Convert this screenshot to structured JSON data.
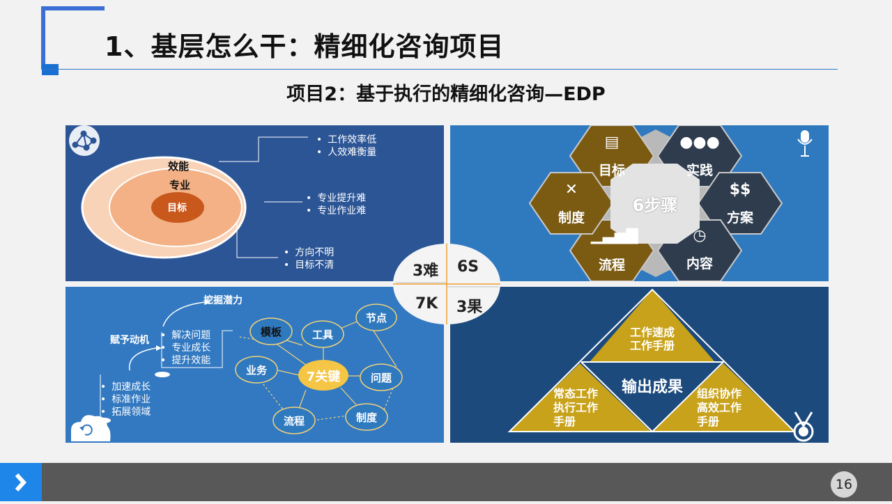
{
  "header": {
    "title": "1、基层怎么干：精细化咨询项目",
    "subtitle": "项目2：基于执行的精细化咨询—EDP"
  },
  "panel_efficiency": {
    "outer_label": "效能",
    "middle_label": "专业",
    "inner_label": "目标",
    "callout_1": [
      "工作效率低",
      "人效难衡量"
    ],
    "callout_2": [
      "专业提升难",
      "专业作业难"
    ],
    "callout_3": [
      "方向不明",
      "目标不清"
    ]
  },
  "panel_steps": {
    "center": "6步骤",
    "steps": [
      "目标",
      "实践",
      "方案",
      "内容",
      "流程",
      "制度"
    ]
  },
  "center_ring": {
    "q1": "3难",
    "q2": "6S",
    "q3": "7K",
    "q4": "3果"
  },
  "panel_keys": {
    "top_label": "挖掘潜力",
    "left_label": "赋予动机",
    "list_1": [
      "解决问题",
      "专业成长",
      "提升效能"
    ],
    "list_2": [
      "加速成长",
      "标准作业",
      "拓展领域"
    ],
    "center": "7关键",
    "nodes": [
      "模板",
      "工具",
      "节点",
      "业务",
      "问题",
      "流程",
      "制度"
    ]
  },
  "panel_output": {
    "top": [
      "工作速成",
      "工作手册"
    ],
    "center": "输出成果",
    "left": [
      "常态工作",
      "执行工作",
      "手册"
    ],
    "right": [
      "组织协作",
      "高效工作",
      "手册"
    ]
  },
  "footer": {
    "page_number": "16"
  },
  "colors": {
    "accent_blue": "#1e86e8",
    "hex_brown": "#7b5a12",
    "hex_dark": "#2e3c4e",
    "triangle_gold": "#c8a21a"
  }
}
